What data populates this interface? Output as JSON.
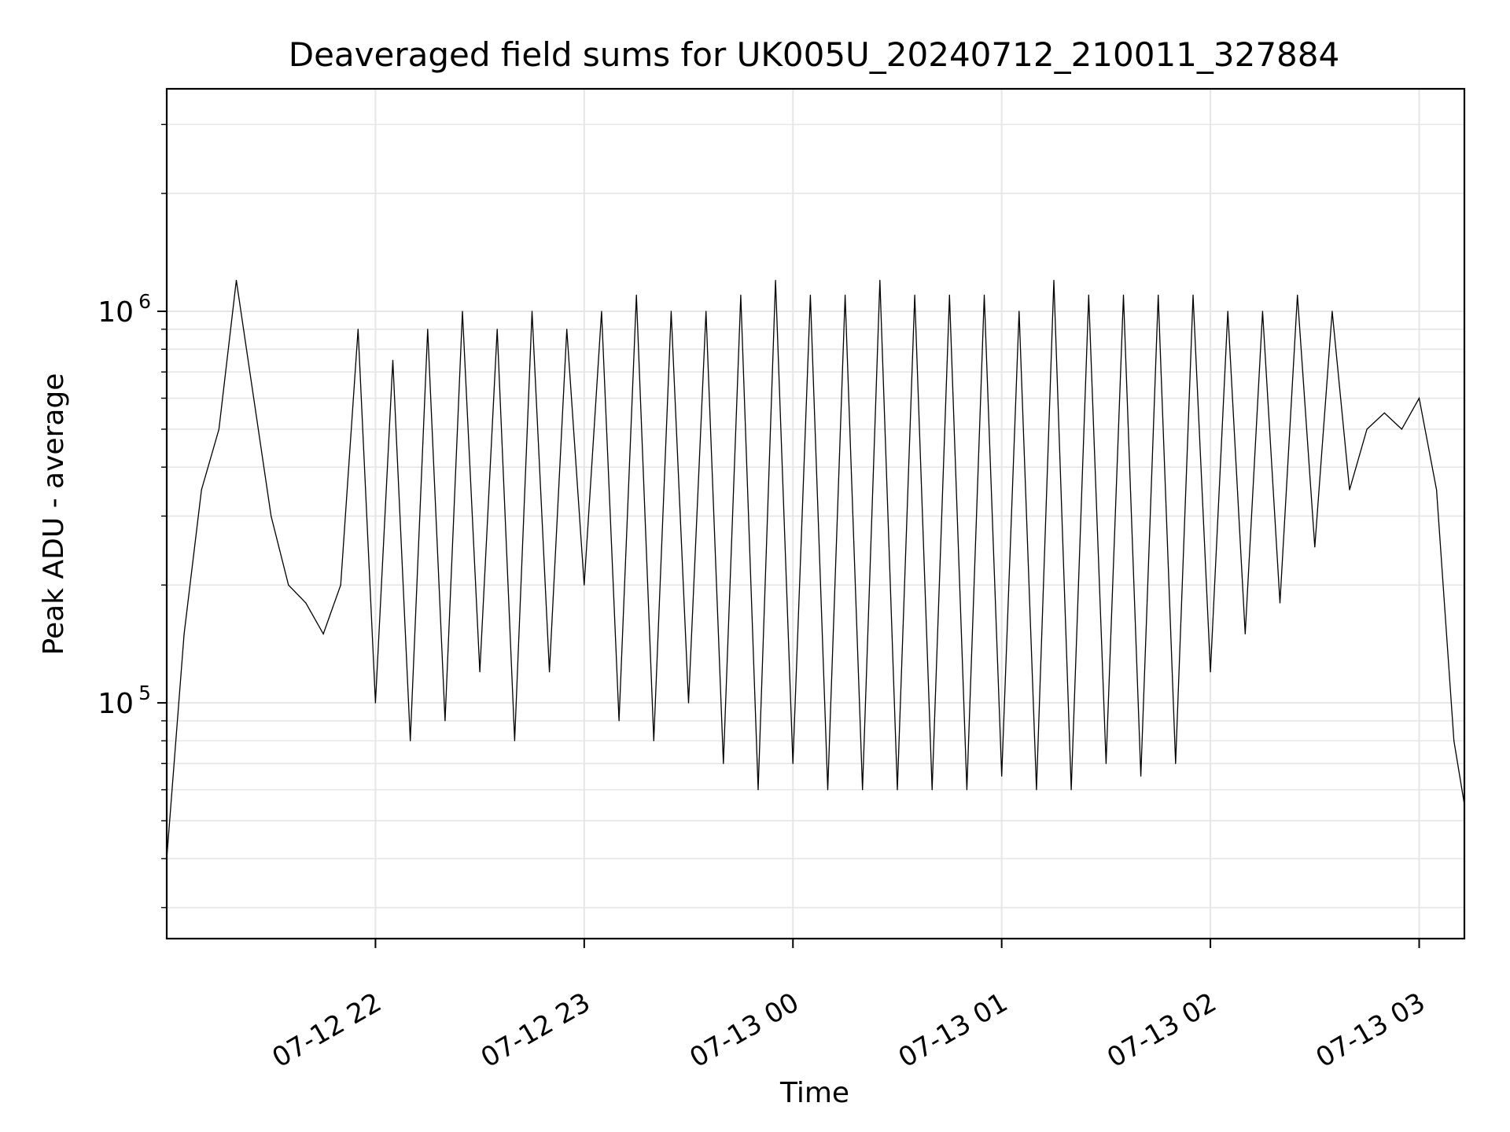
{
  "chart_data": {
    "type": "line",
    "title": "Deaveraged field sums for UK005U_20240712_210011_327884",
    "xlabel": "Time",
    "ylabel": "Peak ADU - average",
    "yscale": "log",
    "ylim": [
      25000,
      3700000
    ],
    "xlim": [
      "2024-07-12 21:00:00",
      "2024-07-13 03:13:00"
    ],
    "grid": true,
    "x_ticks": [
      {
        "value": "2024-07-12 22:00",
        "label": "07-12 22"
      },
      {
        "value": "2024-07-12 23:00",
        "label": "07-12 23"
      },
      {
        "value": "2024-07-13 00:00",
        "label": "07-13 00"
      },
      {
        "value": "2024-07-13 01:00",
        "label": "07-13 01"
      },
      {
        "value": "2024-07-13 02:00",
        "label": "07-13 02"
      },
      {
        "value": "2024-07-13 03:00",
        "label": "07-13 03"
      }
    ],
    "y_ticks": [
      {
        "value": 100000,
        "base": "10",
        "exp": "5"
      },
      {
        "value": 1000000,
        "base": "10",
        "exp": "6"
      }
    ],
    "series": [
      {
        "color": "#000000",
        "linewidth": 1,
        "x": [
          "2024-07-12 21:00",
          "2024-07-12 21:05",
          "2024-07-12 21:10",
          "2024-07-12 21:15",
          "2024-07-12 21:20",
          "2024-07-12 21:25",
          "2024-07-12 21:30",
          "2024-07-12 21:35",
          "2024-07-12 21:40",
          "2024-07-12 21:45",
          "2024-07-12 21:50",
          "2024-07-12 21:55",
          "2024-07-12 22:00",
          "2024-07-12 22:05",
          "2024-07-12 22:10",
          "2024-07-12 22:15",
          "2024-07-12 22:20",
          "2024-07-12 22:25",
          "2024-07-12 22:30",
          "2024-07-12 22:35",
          "2024-07-12 22:40",
          "2024-07-12 22:45",
          "2024-07-12 22:50",
          "2024-07-12 22:55",
          "2024-07-12 23:00",
          "2024-07-12 23:05",
          "2024-07-12 23:10",
          "2024-07-12 23:15",
          "2024-07-12 23:20",
          "2024-07-12 23:25",
          "2024-07-12 23:30",
          "2024-07-12 23:35",
          "2024-07-12 23:40",
          "2024-07-12 23:45",
          "2024-07-12 23:50",
          "2024-07-12 23:55",
          "2024-07-13 00:00",
          "2024-07-13 00:05",
          "2024-07-13 00:10",
          "2024-07-13 00:15",
          "2024-07-13 00:20",
          "2024-07-13 00:25",
          "2024-07-13 00:30",
          "2024-07-13 00:35",
          "2024-07-13 00:40",
          "2024-07-13 00:45",
          "2024-07-13 00:50",
          "2024-07-13 00:55",
          "2024-07-13 01:00",
          "2024-07-13 01:05",
          "2024-07-13 01:10",
          "2024-07-13 01:15",
          "2024-07-13 01:20",
          "2024-07-13 01:25",
          "2024-07-13 01:30",
          "2024-07-13 01:35",
          "2024-07-13 01:40",
          "2024-07-13 01:45",
          "2024-07-13 01:50",
          "2024-07-13 01:55",
          "2024-07-13 02:00",
          "2024-07-13 02:05",
          "2024-07-13 02:10",
          "2024-07-13 02:15",
          "2024-07-13 02:20",
          "2024-07-13 02:25",
          "2024-07-13 02:30",
          "2024-07-13 02:35",
          "2024-07-13 02:40",
          "2024-07-13 02:45",
          "2024-07-13 02:50",
          "2024-07-13 02:55",
          "2024-07-13 03:00",
          "2024-07-13 03:05",
          "2024-07-13 03:10",
          "2024-07-13 03:13"
        ],
        "y": [
          40000,
          150000,
          350000,
          500000,
          1200000,
          600000,
          300000,
          200000,
          180000,
          150000,
          200000,
          900000,
          100000,
          750000,
          80000,
          900000,
          90000,
          1000000,
          120000,
          900000,
          80000,
          1000000,
          120000,
          900000,
          200000,
          1000000,
          90000,
          1100000,
          80000,
          1000000,
          100000,
          1000000,
          70000,
          1100000,
          60000,
          1200000,
          70000,
          1100000,
          60000,
          1100000,
          60000,
          1200000,
          60000,
          1100000,
          60000,
          1100000,
          60000,
          1100000,
          65000,
          1000000,
          60000,
          1200000,
          60000,
          1100000,
          70000,
          1100000,
          65000,
          1100000,
          70000,
          1100000,
          120000,
          1000000,
          150000,
          1000000,
          180000,
          1100000,
          250000,
          1000000,
          350000,
          500000,
          550000,
          500000,
          600000,
          350000,
          80000,
          55000
        ]
      }
    ]
  }
}
